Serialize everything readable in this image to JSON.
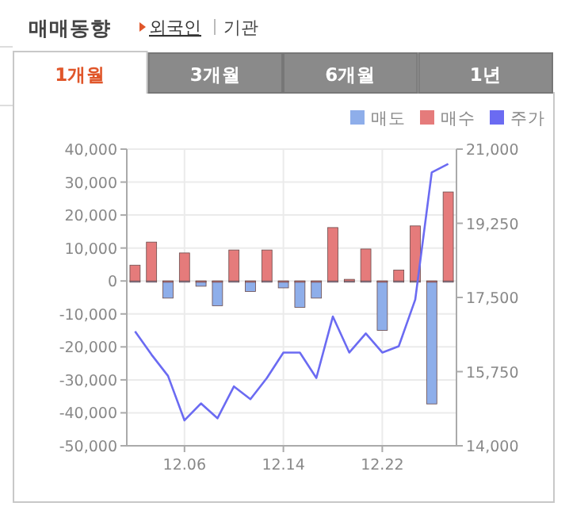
{
  "chart_data": {
    "type": "bar",
    "title": "매매동향",
    "annotations": [
      "외국인",
      "기관",
      "1개월",
      "3개월",
      "6개월",
      "1년"
    ],
    "categories": [
      null,
      null,
      null,
      "12.06",
      null,
      null,
      null,
      null,
      null,
      "12.14",
      null,
      null,
      null,
      null,
      null,
      "12.22",
      null,
      null,
      null,
      null
    ],
    "series": [
      {
        "name": "매도",
        "color": "#8eaeea",
        "values": [
          0,
          0,
          -5200,
          0,
          -1600,
          -7500,
          0,
          -3200,
          0,
          -2100,
          -8000,
          -5200,
          0,
          0,
          0,
          -15000,
          0,
          0,
          -37300,
          0
        ]
      },
      {
        "name": "매수",
        "color": "#e57b7b",
        "values": [
          4800,
          11800,
          0,
          8500,
          0,
          0,
          9400,
          0,
          9400,
          0,
          0,
          0,
          16200,
          500,
          9700,
          0,
          3300,
          16700,
          0,
          27000
        ]
      },
      {
        "name": "주가",
        "type": "line",
        "axis": "y2",
        "color": "#6b6bf2",
        "values": [
          16700,
          16150,
          15650,
          14600,
          15000,
          14650,
          15400,
          15100,
          15600,
          16200,
          16200,
          15600,
          17050,
          16200,
          16650,
          16200,
          16350,
          17450,
          20450,
          20650
        ]
      }
    ],
    "ylim": [
      -50000,
      40000
    ],
    "yticks": [
      {
        "value": -50000,
        "label": "-50,000"
      },
      {
        "value": -40000,
        "label": "-40,000"
      },
      {
        "value": -30000,
        "label": "-30,000"
      },
      {
        "value": -20000,
        "label": "-20,000"
      },
      {
        "value": -10000,
        "label": "-10,000"
      },
      0,
      {
        "value": 10000,
        "label": "10,000"
      },
      {
        "value": 20000,
        "label": "20,000"
      },
      {
        "value": 30000,
        "label": "30,000"
      },
      {
        "value": 40000,
        "label": "40,000"
      }
    ],
    "y2lim": [
      14000,
      21000
    ],
    "y2ticks": [
      {
        "value": 14000,
        "label": "14,000"
      },
      {
        "value": 15750,
        "label": "15,750"
      },
      {
        "value": 17500,
        "label": "17,500"
      },
      {
        "value": 19250,
        "label": "19,250"
      },
      {
        "value": 21000,
        "label": "21,000"
      }
    ],
    "grid": true,
    "legend": "top right"
  }
}
